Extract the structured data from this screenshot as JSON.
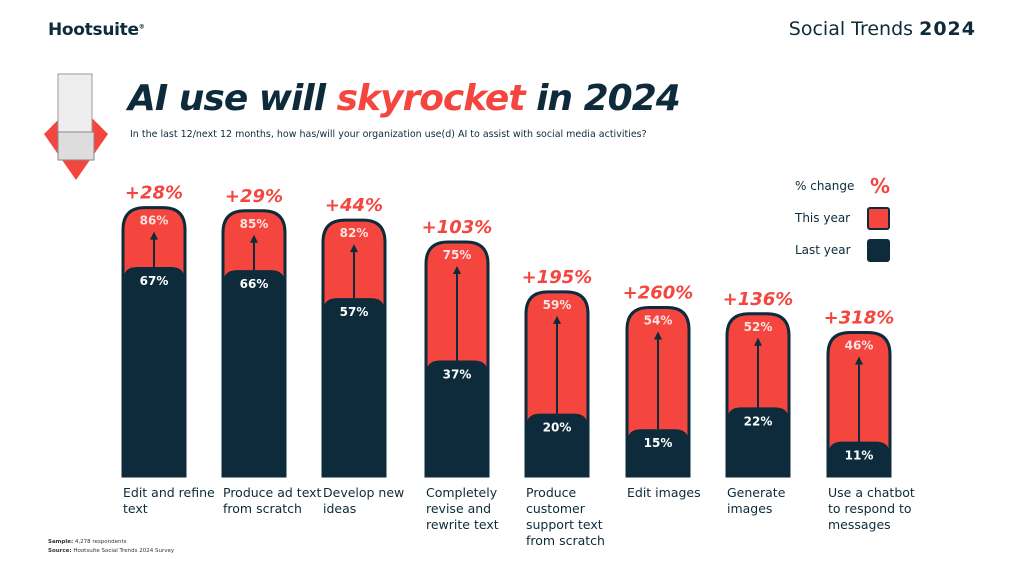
{
  "header": {
    "logo": "Hootsuite",
    "brand_prefix": "Social Trends",
    "brand_year": "2024"
  },
  "title": {
    "pre": "AI use will ",
    "highlight": "skyrocket",
    "post": " in 2024"
  },
  "subtitle": "In the last 12/next 12 months, how has/will your organization use(d) AI to assist with social media activities?",
  "legend": {
    "change_label": "% change",
    "change_symbol": "%",
    "this_year": "This year",
    "last_year": "Last year"
  },
  "notes": {
    "sample_label": "Sample:",
    "sample": "4,278 respondents",
    "source_label": "Source:",
    "source": "Hootsuite Social Trends 2024 Survey"
  },
  "colors": {
    "this_year": "#f4463f",
    "last_year": "#0d2b3a",
    "change": "#f4463f"
  },
  "chart_data": {
    "type": "bar",
    "categories": [
      "Edit and refine text",
      "Produce ad text from scratch",
      "Develop new ideas",
      "Completely revise and rewrite text",
      "Produce customer support text from scratch",
      "Edit images",
      "Generate images",
      "Use a chatbot to respond to messages"
    ],
    "series": [
      {
        "name": "Last year",
        "values": [
          67,
          66,
          57,
          37,
          20,
          15,
          22,
          11
        ]
      },
      {
        "name": "This year",
        "values": [
          86,
          85,
          82,
          75,
          59,
          54,
          52,
          46
        ]
      }
    ],
    "change": [
      "+28%",
      "+29%",
      "+44%",
      "+103%",
      "+195%",
      "+260%",
      "+136%",
      "+318%"
    ],
    "value_labels_last": [
      "67%",
      "66%",
      "57%",
      "37%",
      "20%",
      "15%",
      "22%",
      "11%"
    ],
    "value_labels_this": [
      "86%",
      "85%",
      "82%",
      "75%",
      "59%",
      "54%",
      "52%",
      "46%"
    ],
    "ylim": [
      0,
      100
    ],
    "grid": false,
    "legend": "top-right"
  }
}
